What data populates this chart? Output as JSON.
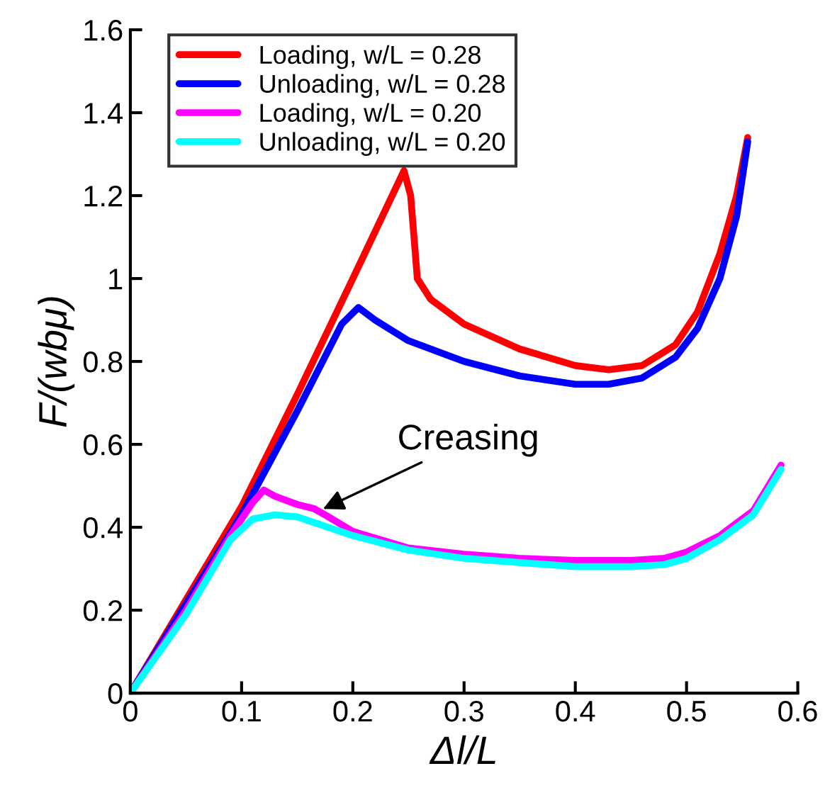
{
  "chart_data": {
    "type": "line",
    "xlabel": "Δl/L",
    "ylabel": "F/(wbμ)",
    "xlim": [
      0,
      0.6
    ],
    "ylim": [
      0,
      1.6
    ],
    "xticks": [
      0,
      0.1,
      0.2,
      0.3,
      0.4,
      0.5,
      0.6
    ],
    "yticks": [
      0,
      0.2,
      0.4,
      0.6,
      0.8,
      1,
      1.2,
      1.4,
      1.6
    ],
    "grid": false,
    "legend": "top left",
    "marker": "none",
    "line_style": "solid",
    "annotations": [
      {
        "text": "Creasing",
        "x": 0.17,
        "y": 0.44
      }
    ],
    "series": [
      {
        "name": "Loading, w/L = 0.28",
        "color": "#ff0000",
        "x": [
          0,
          0.1,
          0.15,
          0.2,
          0.246,
          0.252,
          0.258,
          0.27,
          0.3,
          0.35,
          0.4,
          0.43,
          0.46,
          0.49,
          0.51,
          0.53,
          0.545,
          0.555
        ],
        "values": [
          0,
          0.45,
          0.72,
          1.0,
          1.26,
          1.2,
          1.0,
          0.95,
          0.89,
          0.83,
          0.79,
          0.78,
          0.79,
          0.84,
          0.92,
          1.06,
          1.2,
          1.34
        ]
      },
      {
        "name": "Unloading, w/L = 0.28",
        "color": "#0000ff",
        "x": [
          0,
          0.1,
          0.15,
          0.19,
          0.205,
          0.22,
          0.25,
          0.3,
          0.35,
          0.4,
          0.43,
          0.46,
          0.49,
          0.51,
          0.53,
          0.545,
          0.555
        ],
        "values": [
          0,
          0.43,
          0.68,
          0.89,
          0.93,
          0.9,
          0.85,
          0.8,
          0.765,
          0.745,
          0.745,
          0.76,
          0.81,
          0.88,
          1.0,
          1.15,
          1.33
        ]
      },
      {
        "name": "Loading, w/L = 0.20",
        "color": "#ff00ff",
        "x": [
          0,
          0.05,
          0.09,
          0.11,
          0.12,
          0.13,
          0.15,
          0.165,
          0.175,
          0.2,
          0.25,
          0.3,
          0.35,
          0.4,
          0.45,
          0.48,
          0.5,
          0.53,
          0.56,
          0.585
        ],
        "values": [
          0,
          0.2,
          0.38,
          0.46,
          0.49,
          0.475,
          0.455,
          0.445,
          0.43,
          0.39,
          0.35,
          0.335,
          0.325,
          0.32,
          0.32,
          0.325,
          0.34,
          0.38,
          0.44,
          0.55
        ]
      },
      {
        "name": "Unloading, w/L = 0.20",
        "color": "#00ffff",
        "x": [
          0,
          0.05,
          0.09,
          0.11,
          0.13,
          0.15,
          0.2,
          0.25,
          0.3,
          0.35,
          0.4,
          0.45,
          0.48,
          0.5,
          0.53,
          0.56,
          0.585
        ],
        "values": [
          0,
          0.19,
          0.37,
          0.42,
          0.43,
          0.425,
          0.38,
          0.345,
          0.325,
          0.315,
          0.305,
          0.305,
          0.31,
          0.325,
          0.37,
          0.43,
          0.54
        ]
      }
    ]
  }
}
